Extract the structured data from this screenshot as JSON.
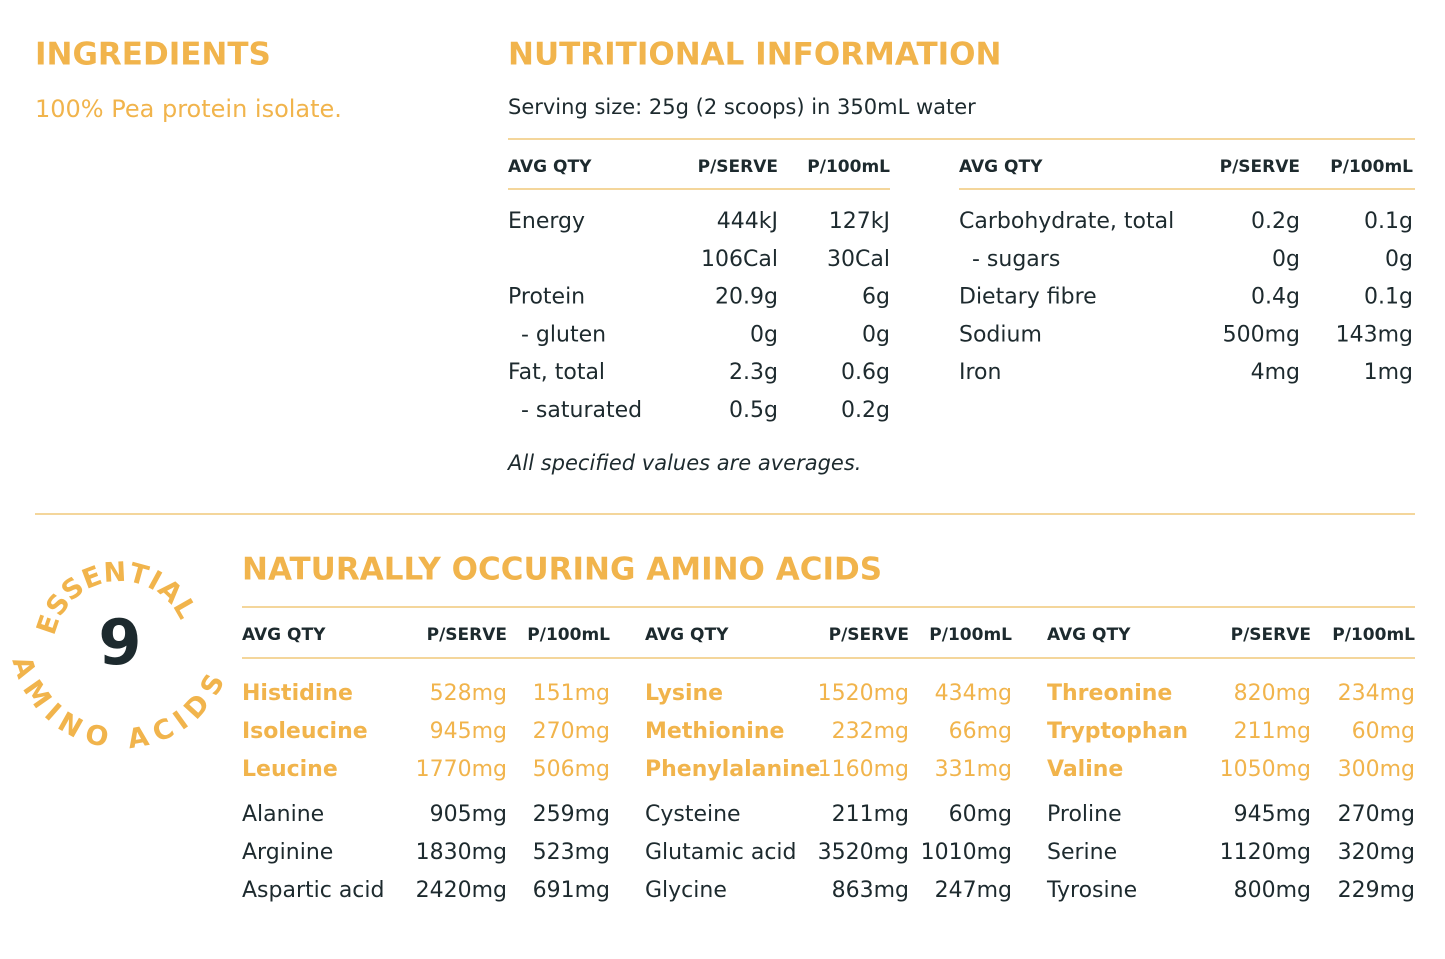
{
  "ingredients": {
    "title": "INGREDIENTS",
    "text": "100% Pea protein isolate."
  },
  "nutrition": {
    "title": "NUTRITIONAL INFORMATION",
    "serving": "Serving size: 25g (2 scoops) in 350mL water",
    "tables": [
      {
        "header": [
          "AVG QTY",
          "P/SERVE",
          "P/100mL"
        ],
        "rows": [
          [
            "Energy",
            "444kJ",
            "127kJ"
          ],
          [
            null,
            "106Cal",
            "30Cal"
          ],
          [
            "Protein",
            "20.9g",
            "6g"
          ],
          [
            "- gluten",
            "0g",
            "0g"
          ],
          [
            "Fat, total",
            "2.3g",
            "0.6g"
          ],
          [
            "- saturated",
            "0.5g",
            "0.2g"
          ]
        ]
      },
      {
        "header": [
          "AVG QTY",
          "P/SERVE",
          "P/100mL"
        ],
        "rows": [
          [
            "Carbohydrate, total",
            "0.2g",
            "0.1g"
          ],
          [
            "- sugars",
            "0g",
            "0g"
          ],
          [
            "Dietary fibre",
            "0.4g",
            "0.1g"
          ],
          [
            "Sodium",
            "500mg",
            "143mg"
          ],
          [
            "Iron",
            "4mg",
            "1mg"
          ]
        ]
      }
    ],
    "note": "All specified values are averages."
  },
  "amino": {
    "badge": {
      "top": "ESSENTIAL",
      "number": "9",
      "bottom": "AMINO ACIDS"
    },
    "title": "NATURALLY OCCURING AMINO ACIDS",
    "groups": [
      {
        "header": [
          "AVG QTY",
          "P/SERVE",
          "P/100mL"
        ],
        "essential": [
          [
            "Histidine",
            "528mg",
            "151mg"
          ],
          [
            "Isoleucine",
            "945mg",
            "270mg"
          ],
          [
            "Leucine",
            "1770mg",
            "506mg"
          ]
        ],
        "other": [
          [
            "Alanine",
            "905mg",
            "259mg"
          ],
          [
            "Arginine",
            "1830mg",
            "523mg"
          ],
          [
            "Aspartic acid",
            "2420mg",
            "691mg"
          ]
        ]
      },
      {
        "header": [
          "AVG QTY",
          "P/SERVE",
          "P/100mL"
        ],
        "essential": [
          [
            "Lysine",
            "1520mg",
            "434mg"
          ],
          [
            "Methionine",
            "232mg",
            "66mg"
          ],
          [
            "Phenylalanine",
            "1160mg",
            "331mg"
          ]
        ],
        "other": [
          [
            "Cysteine",
            "211mg",
            "60mg"
          ],
          [
            "Glutamic acid",
            "3520mg",
            "1010mg"
          ],
          [
            "Glycine",
            "863mg",
            "247mg"
          ]
        ]
      },
      {
        "header": [
          "AVG QTY",
          "P/SERVE",
          "P/100mL"
        ],
        "essential": [
          [
            "Threonine",
            "820mg",
            "234mg"
          ],
          [
            "Tryptophan",
            "211mg",
            "60mg"
          ],
          [
            "Valine",
            "1050mg",
            "300mg"
          ]
        ],
        "other": [
          [
            "Proline",
            "945mg",
            "270mg"
          ],
          [
            "Serine",
            "1120mg",
            "320mg"
          ],
          [
            "Tyrosine",
            "800mg",
            "229mg"
          ]
        ]
      }
    ]
  }
}
